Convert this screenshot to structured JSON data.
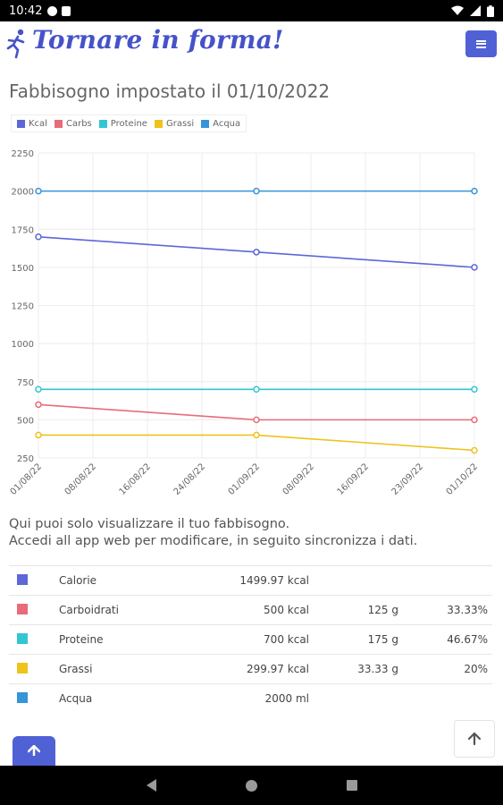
{
  "status": {
    "time": "10:42"
  },
  "header": {
    "brand": "Tornare in forma!"
  },
  "page": {
    "title": "Fabbisogno impostato il 01/10/2022",
    "info_line1": "Qui puoi solo visualizzare il tuo fabbisogno.",
    "info_line2": "Accedi all app web per modificare, in seguito sincronizza i dati."
  },
  "colors": {
    "accent": "#5061d6",
    "kcal": "#5c67d9",
    "carbs": "#e86b7a",
    "proteine": "#33c6d1",
    "grassi": "#f0c21c",
    "acqua": "#3694d9"
  },
  "chart_data": {
    "type": "line",
    "x": [
      "01/08/22",
      "08/08/22",
      "16/08/22",
      "24/08/22",
      "01/09/22",
      "08/09/22",
      "16/09/22",
      "23/09/22",
      "01/10/22"
    ],
    "ylim": [
      250,
      2250
    ],
    "yticks": [
      250,
      500,
      750,
      1000,
      1250,
      1500,
      1750,
      2000,
      2250
    ],
    "grid": true,
    "legend_position": "top-left",
    "series": [
      {
        "name": "Kcal",
        "color": "#5c67d9",
        "points": [
          [
            "01/08/22",
            1700
          ],
          [
            "01/09/22",
            1600
          ],
          [
            "01/10/22",
            1500
          ]
        ]
      },
      {
        "name": "Carbs",
        "color": "#e86b7a",
        "points": [
          [
            "01/08/22",
            600
          ],
          [
            "01/09/22",
            500
          ],
          [
            "01/10/22",
            500
          ]
        ]
      },
      {
        "name": "Proteine",
        "color": "#33c6d1",
        "points": [
          [
            "01/08/22",
            700
          ],
          [
            "01/09/22",
            700
          ],
          [
            "01/10/22",
            700
          ]
        ]
      },
      {
        "name": "Grassi",
        "color": "#f0c21c",
        "points": [
          [
            "01/08/22",
            400
          ],
          [
            "01/09/22",
            400
          ],
          [
            "01/10/22",
            300
          ]
        ]
      },
      {
        "name": "Acqua",
        "color": "#3694d9",
        "points": [
          [
            "01/08/22",
            2000
          ],
          [
            "01/09/22",
            2000
          ],
          [
            "01/10/22",
            2000
          ]
        ]
      }
    ]
  },
  "table": [
    {
      "label": "Calorie",
      "amount": "1499.97 kcal",
      "grams": "",
      "pct": "",
      "color": "#5c67d9"
    },
    {
      "label": "Carboidrati",
      "amount": "500 kcal",
      "grams": "125 g",
      "pct": "33.33%",
      "color": "#e86b7a"
    },
    {
      "label": "Proteine",
      "amount": "700 kcal",
      "grams": "175 g",
      "pct": "46.67%",
      "color": "#33c6d1"
    },
    {
      "label": "Grassi",
      "amount": "299.97 kcal",
      "grams": "33.33 g",
      "pct": "20%",
      "color": "#f0c21c"
    },
    {
      "label": "Acqua",
      "amount": "2000 ml",
      "grams": "",
      "pct": "",
      "color": "#3694d9"
    }
  ]
}
